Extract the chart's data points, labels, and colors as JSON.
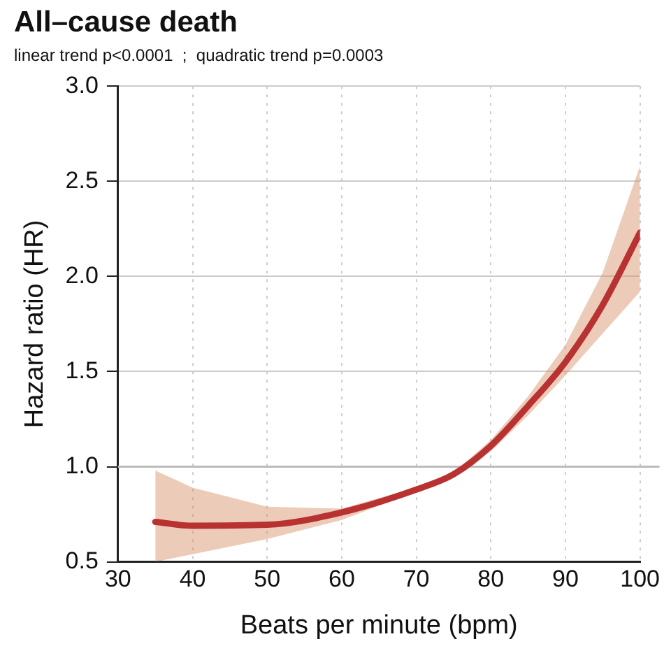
{
  "chart_data": {
    "type": "line",
    "title": "All–cause death",
    "subtitle": "linear trend p<0.0001  ;  quadratic trend p=0.0003",
    "xlabel": "Beats per minute (bpm)",
    "ylabel": "Hazard ratio (HR)",
    "x": [
      35,
      40,
      50,
      60,
      70,
      75,
      80,
      85,
      90,
      95,
      100
    ],
    "series": [
      {
        "color": "#b83232",
        "values": [
          0.71,
          0.69,
          0.695,
          0.76,
          0.88,
          0.96,
          1.11,
          1.32,
          1.55,
          1.85,
          2.23
        ],
        "lower": [
          0.5,
          0.54,
          0.62,
          0.72,
          0.87,
          0.95,
          1.08,
          1.27,
          1.48,
          1.7,
          1.92
        ],
        "upper": [
          0.98,
          0.89,
          0.79,
          0.78,
          0.89,
          0.97,
          1.14,
          1.37,
          1.64,
          2.02,
          2.58
        ]
      }
    ],
    "xlim": [
      30,
      100
    ],
    "xticks": [
      30,
      40,
      50,
      60,
      70,
      80,
      90,
      100
    ],
    "ylim": [
      0.5,
      3.0
    ],
    "yticks": [
      {
        "value": 0.5,
        "label": "0.5"
      },
      {
        "value": 1.0,
        "label": "1.0"
      },
      {
        "value": 1.5,
        "label": "1.5"
      },
      {
        "value": 2.0,
        "label": "2.0"
      },
      {
        "value": 2.5,
        "label": "2.5"
      },
      {
        "value": 3.0,
        "label": "3.0"
      }
    ],
    "ref_lines": [
      {
        "axis": "y",
        "value": 1.0,
        "color": "#bbbbbb"
      }
    ],
    "grid": true,
    "legend": false,
    "marker": "none",
    "line_style": "solid"
  }
}
